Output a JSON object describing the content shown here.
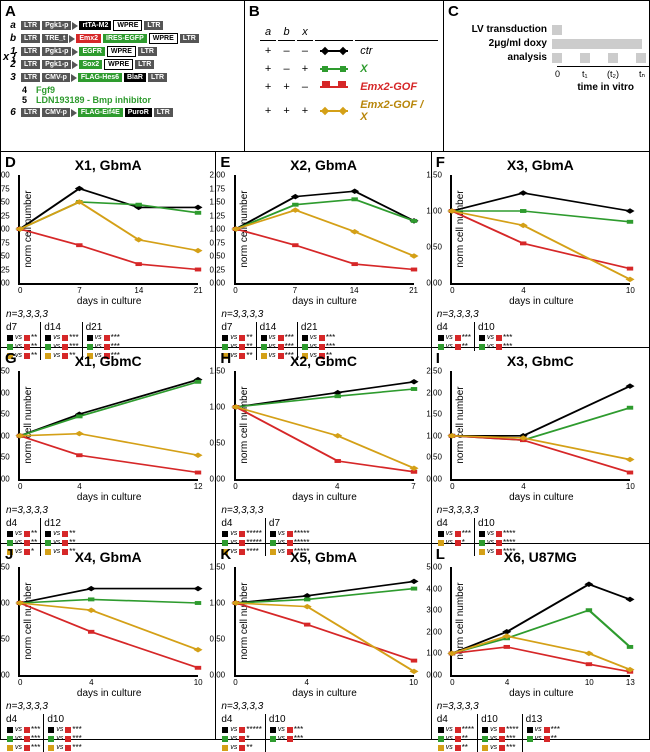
{
  "panelA": {
    "constructs": [
      {
        "idx": "a",
        "segs": [
          [
            "LTR",
            "grey"
          ],
          [
            "Pgk1-p",
            "grey",
            "arrow"
          ],
          [
            "rtTA-M2",
            "black"
          ],
          [
            "WPRE",
            "white"
          ],
          [
            "LTR",
            "grey"
          ]
        ]
      },
      {
        "idx": "b",
        "segs": [
          [
            "LTR",
            "grey"
          ],
          [
            "TRE_t",
            "grey",
            "arrow"
          ],
          [
            "Emx2",
            "red"
          ],
          [
            "IRES-EGFP",
            "green"
          ],
          [
            "WPRE",
            "white"
          ],
          [
            "LTR",
            "grey"
          ]
        ]
      },
      {
        "idx": "1",
        "segs": [
          [
            "LTR",
            "grey"
          ],
          [
            "Pgk1-p",
            "grey",
            "arrow"
          ],
          [
            "EGFR",
            "green"
          ],
          [
            "WPRE",
            "white"
          ],
          [
            "LTR",
            "grey"
          ]
        ]
      },
      {
        "idx": "2",
        "segs": [
          [
            "LTR",
            "grey"
          ],
          [
            "Pgk1-p",
            "grey",
            "arrow"
          ],
          [
            "Sox2",
            "green"
          ],
          [
            "WPRE",
            "white"
          ],
          [
            "LTR",
            "grey"
          ]
        ]
      },
      {
        "idx": "3",
        "segs": [
          [
            "LTR",
            "grey"
          ],
          [
            "CMV-p",
            "grey",
            "arrow"
          ],
          [
            "FLAG-Hes6",
            "green"
          ],
          [
            "BlaR",
            "black"
          ],
          [
            "LTR",
            "grey"
          ]
        ]
      }
    ],
    "text4": "Fgf9",
    "text5": "LDN193189 - Bmp inhibitor",
    "construct6": {
      "idx": "6",
      "segs": [
        [
          "LTR",
          "grey"
        ],
        [
          "CMV-p",
          "grey",
          "arrow"
        ],
        [
          "FLAG-Eif4E",
          "green"
        ],
        [
          "PuroR",
          "black"
        ],
        [
          "LTR",
          "grey"
        ]
      ]
    }
  },
  "panelB": {
    "header": [
      "a",
      "b",
      "x"
    ],
    "rows": [
      {
        "vals": [
          "+",
          "–",
          "–"
        ],
        "line": "ctr",
        "label": "ctr",
        "cls": ""
      },
      {
        "vals": [
          "+",
          "–",
          "+"
        ],
        "line": "x",
        "label": "X",
        "cls": "green"
      },
      {
        "vals": [
          "+",
          "+",
          "–"
        ],
        "line": "emx",
        "label": "Emx2-GOF",
        "cls": "red"
      },
      {
        "vals": [
          "+",
          "+",
          "+"
        ],
        "line": "emxx",
        "label": "Emx2-GOF / X",
        "cls": "gold"
      }
    ]
  },
  "panelC": {
    "rows": [
      {
        "label": "LV transduction"
      },
      {
        "label": "2μg/ml doxy"
      },
      {
        "label": "analysis"
      }
    ],
    "ticks": [
      "0",
      "t₁",
      "(t₂)",
      "tₙ"
    ],
    "axis": "time in vitro"
  },
  "colors": {
    "ctr": "#000000",
    "x": "#2e9b2e",
    "emx": "#d62728",
    "emxx": "#d4a017"
  },
  "charts": [
    {
      "id": "D",
      "title": "X1, GbmA",
      "ylabel": "norm cell number",
      "xlabel": "days in culture",
      "ylim": [
        0,
        2.0
      ],
      "ystep": 0.25,
      "xvals": [
        0,
        7,
        14,
        21
      ],
      "series": {
        "ctr": [
          1,
          1.75,
          1.4,
          1.4
        ],
        "x": [
          1,
          1.5,
          1.45,
          1.3
        ],
        "emx": [
          1,
          0.7,
          0.35,
          0.25
        ],
        "emxx": [
          1,
          1.5,
          0.8,
          0.6
        ]
      },
      "n": "n=3,3,3,3",
      "sig": [
        {
          "h": "d7",
          "rows": [
            [
              "blk",
              "red",
              "**"
            ],
            [
              "grn",
              "red",
              "**"
            ],
            [
              "gld",
              "red",
              "**"
            ]
          ]
        },
        {
          "h": "d14",
          "rows": [
            [
              "blk",
              "red",
              "***"
            ],
            [
              "grn",
              "red",
              "***"
            ],
            [
              "gld",
              "red",
              "**"
            ]
          ]
        },
        {
          "h": "d21",
          "rows": [
            [
              "blk",
              "red",
              "***"
            ],
            [
              "grn",
              "red",
              "***"
            ],
            [
              "gld",
              "red",
              "***"
            ]
          ]
        }
      ]
    },
    {
      "id": "E",
      "title": "X2, GbmA",
      "ylabel": "norm cell number",
      "xlabel": "days in culture",
      "ylim": [
        0,
        2.0
      ],
      "ystep": 0.25,
      "xvals": [
        0,
        7,
        14,
        21
      ],
      "series": {
        "ctr": [
          1,
          1.6,
          1.7,
          1.15
        ],
        "x": [
          1,
          1.45,
          1.55,
          1.15
        ],
        "emx": [
          1,
          0.7,
          0.35,
          0.25
        ],
        "emxx": [
          1,
          1.35,
          0.95,
          0.5
        ]
      },
      "n": "n=3,3,3,3",
      "sig": [
        {
          "h": "d7",
          "rows": [
            [
              "blk",
              "red",
              "**"
            ],
            [
              "grn",
              "red",
              "**"
            ],
            [
              "gld",
              "red",
              "**"
            ]
          ]
        },
        {
          "h": "d14",
          "rows": [
            [
              "blk",
              "red",
              "***"
            ],
            [
              "grn",
              "red",
              "***"
            ],
            [
              "gld",
              "red",
              "***"
            ]
          ]
        },
        {
          "h": "d21",
          "rows": [
            [
              "blk",
              "red",
              "***"
            ],
            [
              "grn",
              "red",
              "***"
            ],
            [
              "gld",
              "red",
              "**"
            ]
          ]
        }
      ]
    },
    {
      "id": "F",
      "title": "X3, GbmA",
      "ylabel": "norm cell number",
      "xlabel": "days in culture",
      "ylim": [
        0,
        1.5
      ],
      "ystep": 0.5,
      "xvals": [
        0,
        4,
        10
      ],
      "series": {
        "ctr": [
          1,
          1.25,
          1.0
        ],
        "x": [
          1,
          1.0,
          0.85
        ],
        "emx": [
          1,
          0.55,
          0.2
        ],
        "emxx": [
          1,
          0.8,
          0.05
        ]
      },
      "n": "n=3,3,3,3",
      "sig": [
        {
          "h": "d4",
          "rows": [
            [
              "blk",
              "red",
              "***"
            ],
            [
              "grn",
              "red",
              "**"
            ]
          ]
        },
        {
          "h": "d10",
          "rows": [
            [
              "blk",
              "red",
              "***"
            ],
            [
              "grn",
              "red",
              "***"
            ]
          ]
        }
      ]
    },
    {
      "id": "G",
      "title": "X1, GbmC",
      "ylabel": "norm cell number",
      "xlabel": "days in culture",
      "ylim": [
        0,
        2.5
      ],
      "ystep": 0.5,
      "xvals": [
        0,
        4,
        12
      ],
      "series": {
        "ctr": [
          1,
          1.5,
          2.3
        ],
        "x": [
          1,
          1.45,
          2.25
        ],
        "emx": [
          1,
          0.55,
          0.15
        ],
        "emxx": [
          1,
          1.05,
          0.55
        ]
      },
      "n": "n=3,3,3,3",
      "sig": [
        {
          "h": "d4",
          "rows": [
            [
              "blk",
              "red",
              "**"
            ],
            [
              "grn",
              "red",
              "**"
            ],
            [
              "gld",
              "red",
              "*"
            ]
          ]
        },
        {
          "h": "d12",
          "rows": [
            [
              "blk",
              "red",
              "**"
            ],
            [
              "grn",
              "red",
              "**"
            ],
            [
              "gld",
              "red",
              "**"
            ]
          ]
        }
      ]
    },
    {
      "id": "H",
      "title": "X2, GbmC",
      "ylabel": "norm cell number",
      "xlabel": "days in culture",
      "ylim": [
        0,
        1.5
      ],
      "ystep": 0.5,
      "xvals": [
        0,
        4,
        7
      ],
      "series": {
        "ctr": [
          1,
          1.2,
          1.35
        ],
        "x": [
          1,
          1.15,
          1.25
        ],
        "emx": [
          1,
          0.25,
          0.1
        ],
        "emxx": [
          1,
          0.6,
          0.15
        ]
      },
      "n": "n=3,3,3,3",
      "sig": [
        {
          "h": "d4",
          "rows": [
            [
              "blk",
              "red",
              "*****"
            ],
            [
              "grn",
              "red",
              "*****"
            ],
            [
              "gld",
              "red",
              "****"
            ]
          ]
        },
        {
          "h": "d7",
          "rows": [
            [
              "blk",
              "red",
              "*****"
            ],
            [
              "grn",
              "red",
              "*****"
            ],
            [
              "gld",
              "red",
              "*****"
            ]
          ]
        }
      ]
    },
    {
      "id": "I",
      "title": "X3, GbmC",
      "ylabel": "norm cell number",
      "xlabel": "days in culture",
      "ylim": [
        0,
        2.5
      ],
      "ystep": 0.5,
      "xvals": [
        0,
        4,
        10
      ],
      "series": {
        "ctr": [
          1,
          1.0,
          2.15
        ],
        "x": [
          1,
          0.9,
          1.65
        ],
        "emx": [
          1,
          0.9,
          0.15
        ],
        "emxx": [
          1,
          0.95,
          0.45
        ]
      },
      "n": "n=3,3,3,3",
      "sig": [
        {
          "h": "d4",
          "rows": [
            [
              "blk",
              "red",
              "***"
            ],
            [
              "gld",
              "red",
              "*"
            ]
          ]
        },
        {
          "h": "d10",
          "rows": [
            [
              "blk",
              "red",
              "****"
            ],
            [
              "grn",
              "red",
              "****"
            ],
            [
              "gld",
              "red",
              "****"
            ]
          ]
        }
      ]
    },
    {
      "id": "J",
      "title": "X4, GbmA",
      "ylabel": "norm cell number",
      "xlabel": "days in culture",
      "ylim": [
        0,
        1.5
      ],
      "ystep": 0.5,
      "xvals": [
        0,
        4,
        10
      ],
      "series": {
        "ctr": [
          1,
          1.2,
          1.2
        ],
        "x": [
          1,
          1.05,
          1.0
        ],
        "emx": [
          1,
          0.6,
          0.1
        ],
        "emxx": [
          1,
          0.9,
          0.35
        ]
      },
      "n": "n=3,3,3,3",
      "sig": [
        {
          "h": "d4",
          "rows": [
            [
              "blk",
              "red",
              "***"
            ],
            [
              "grn",
              "red",
              "***"
            ],
            [
              "gld",
              "red",
              "***"
            ]
          ]
        },
        {
          "h": "d10",
          "rows": [
            [
              "blk",
              "red",
              "***"
            ],
            [
              "grn",
              "red",
              "***"
            ],
            [
              "gld",
              "red",
              "***"
            ]
          ]
        }
      ]
    },
    {
      "id": "K",
      "title": "X5, GbmA",
      "ylabel": "norm cell number",
      "xlabel": "days in culture",
      "ylim": [
        0,
        1.5
      ],
      "ystep": 0.5,
      "xvals": [
        0,
        4,
        10
      ],
      "series": {
        "ctr": [
          1,
          1.1,
          1.3
        ],
        "x": [
          1,
          1.05,
          1.2
        ],
        "emx": [
          1,
          0.7,
          0.2
        ],
        "emxx": [
          1,
          0.95,
          0.05
        ]
      },
      "n": "n=3,3,3,3",
      "sig": [
        {
          "h": "d4",
          "rows": [
            [
              "blk",
              "red",
              "*****"
            ],
            [
              "grn",
              "red",
              "*"
            ],
            [
              "gld",
              "red",
              "**"
            ]
          ]
        },
        {
          "h": "d10",
          "rows": [
            [
              "blk",
              "red",
              "***"
            ],
            [
              "grn",
              "red",
              "***"
            ]
          ]
        }
      ]
    },
    {
      "id": "L",
      "title": "X6, U87MG",
      "ylabel": "norm cell number",
      "xlabel": "days in culture",
      "ylim": [
        0,
        5.0
      ],
      "ystep": 1.0,
      "xvals": [
        0,
        4,
        10,
        13
      ],
      "series": {
        "ctr": [
          1,
          2.0,
          4.2,
          3.5
        ],
        "x": [
          1,
          1.7,
          3.0,
          1.3
        ],
        "emx": [
          1,
          1.3,
          0.5,
          0.15
        ],
        "emxx": [
          1,
          1.8,
          1.0,
          0.25
        ]
      },
      "n": "n=3,3,3,3",
      "sig": [
        {
          "h": "d4",
          "rows": [
            [
              "blk",
              "red",
              "****"
            ],
            [
              "grn",
              "red",
              "**"
            ],
            [
              "gld",
              "red",
              "**"
            ]
          ]
        },
        {
          "h": "d10",
          "rows": [
            [
              "blk",
              "red",
              "****"
            ],
            [
              "grn",
              "red",
              "***"
            ],
            [
              "gld",
              "red",
              "***"
            ]
          ]
        },
        {
          "h": "d13",
          "rows": [
            [
              "blk",
              "red",
              "***"
            ],
            [
              "grn",
              "red",
              "**"
            ]
          ]
        }
      ]
    }
  ]
}
